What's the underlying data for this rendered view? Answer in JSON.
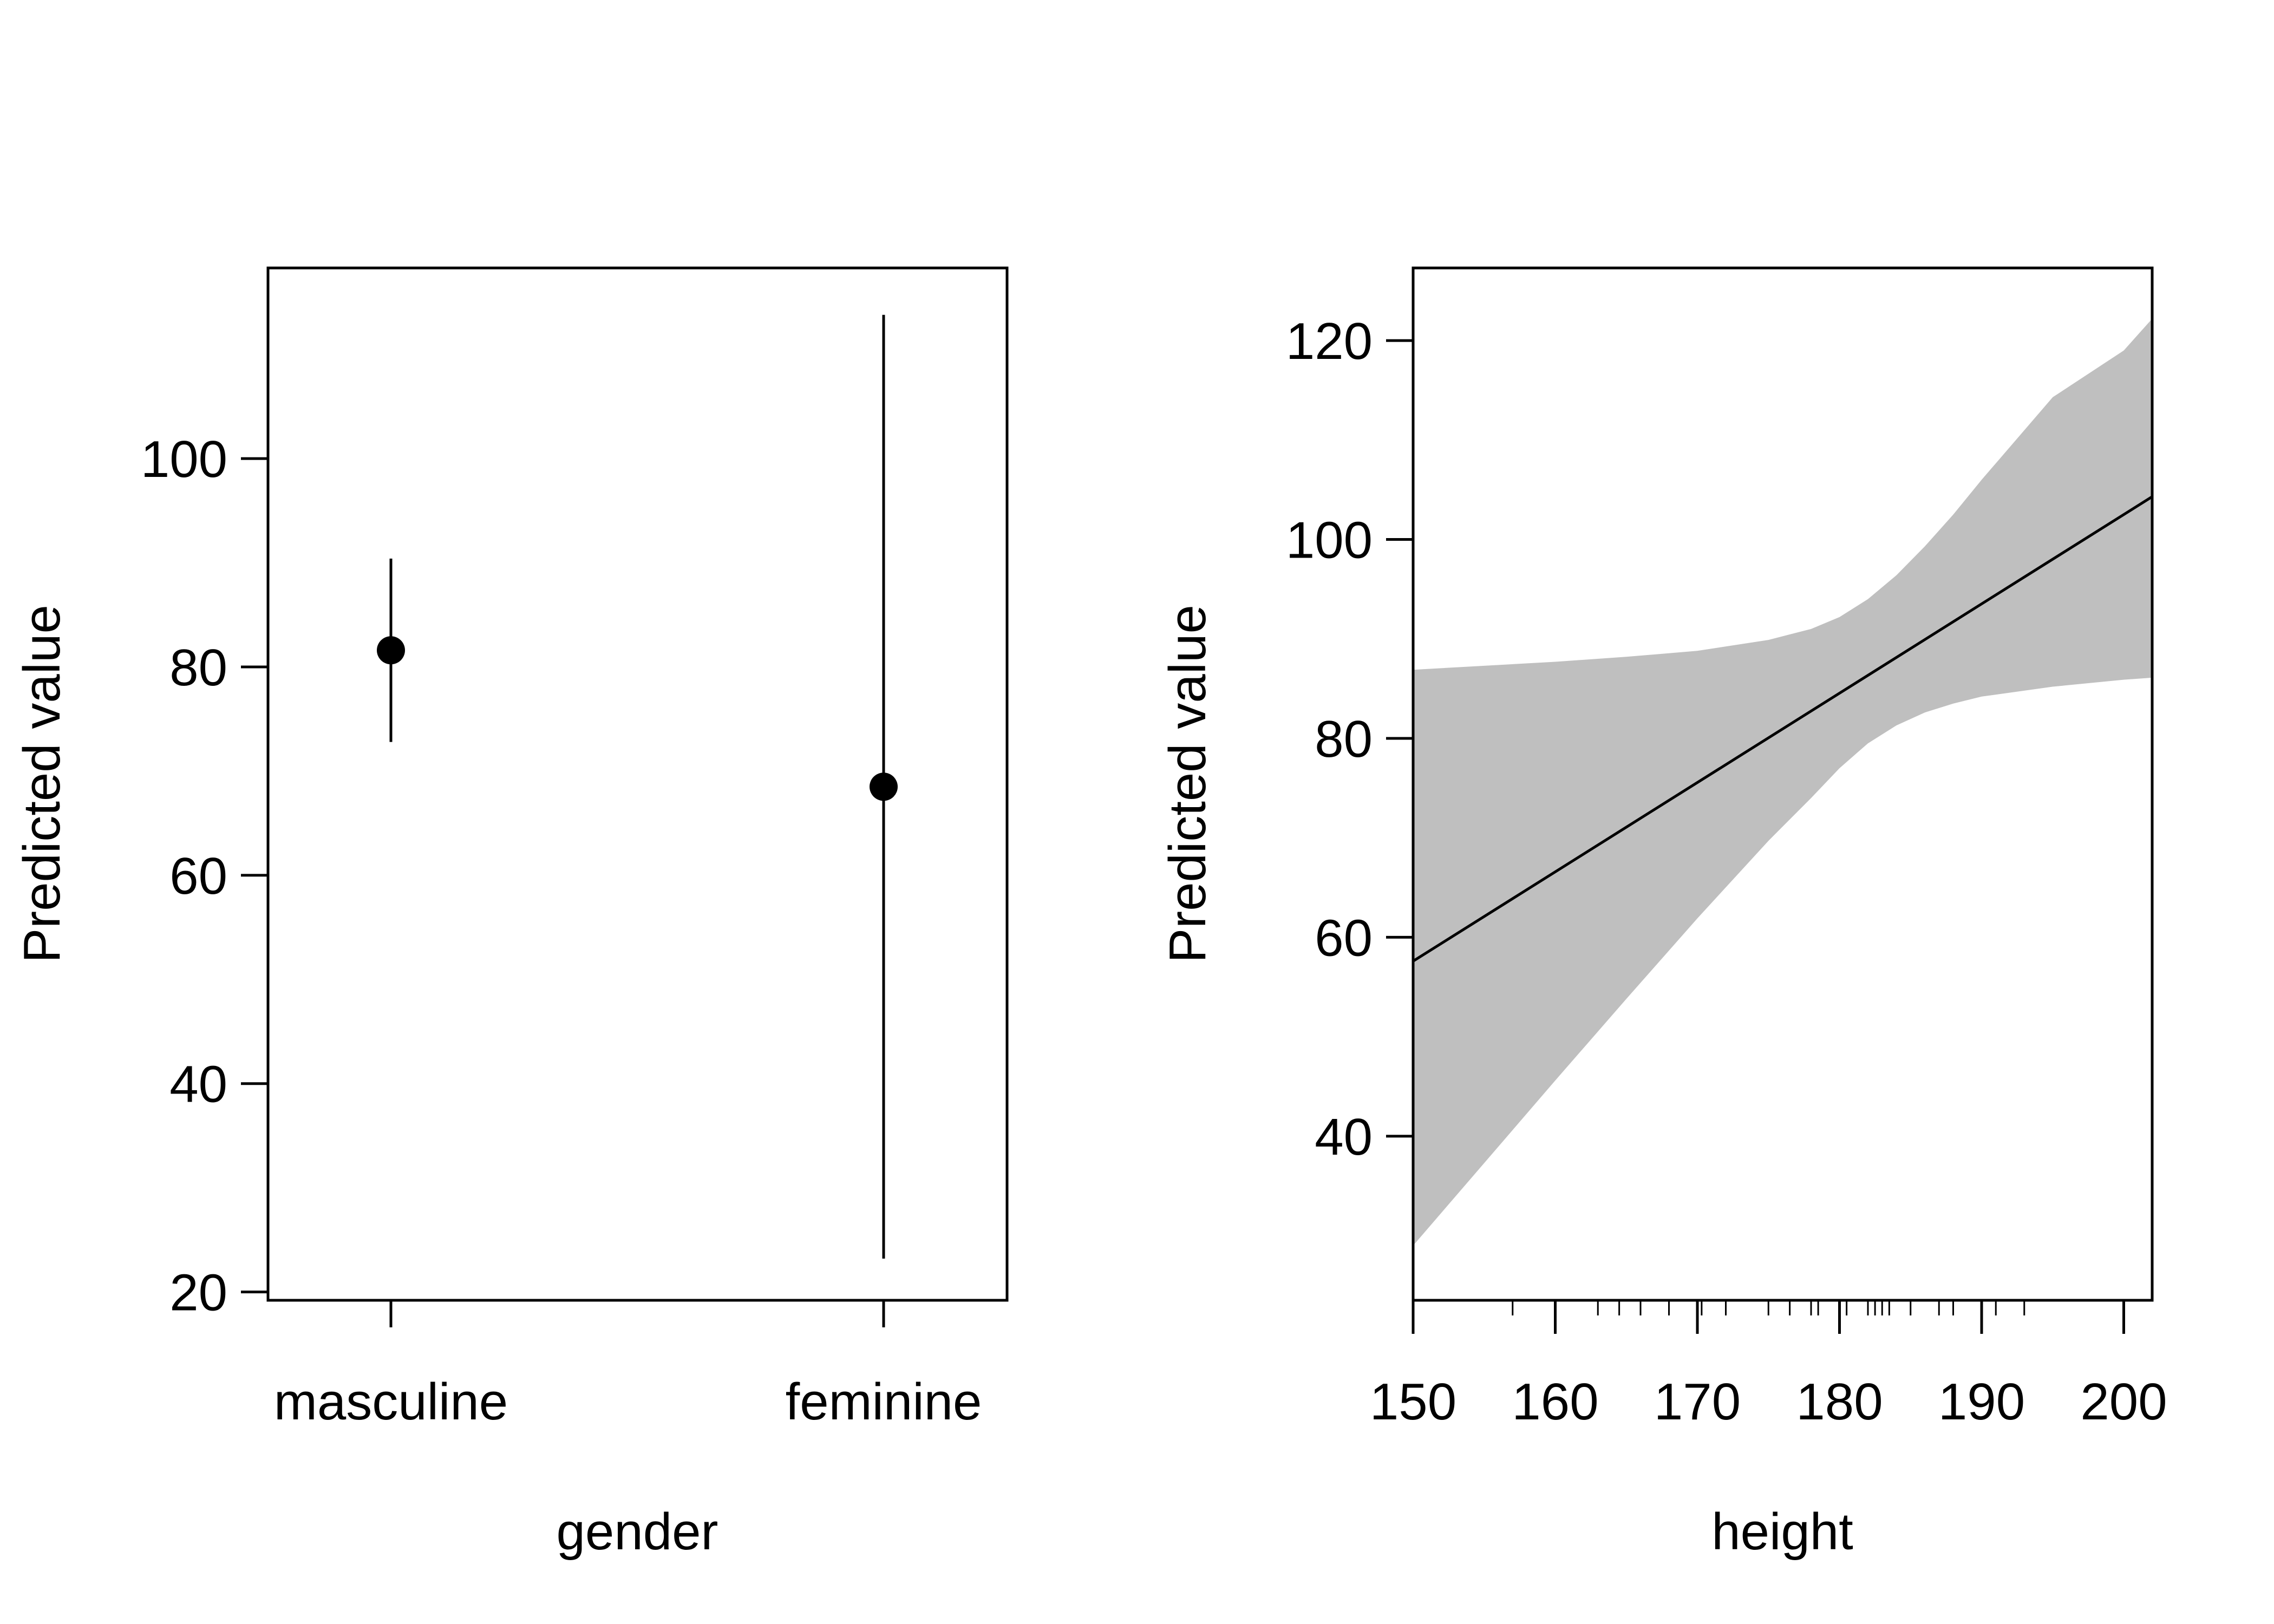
{
  "chart_data": [
    {
      "type": "scatter",
      "xlabel": "gender",
      "ylabel": "Predicted value",
      "categories": [
        "masculine",
        "feminine"
      ],
      "series": [
        {
          "points": [
            {
              "x": "masculine",
              "y": 81.6,
              "lower": 72.8,
              "upper": 90.4
            },
            {
              "x": "feminine",
              "y": 68.5,
              "lower": 23.2,
              "upper": 113.8
            }
          ]
        }
      ],
      "ylim": [
        19.2,
        118.3
      ],
      "yticks": [
        20,
        40,
        60,
        80,
        100
      ],
      "grid": false
    },
    {
      "type": "line",
      "xlabel": "height",
      "ylabel": "Predicted value",
      "xlim": [
        150,
        202
      ],
      "ylim": [
        23.5,
        127.3
      ],
      "xticks": [
        150,
        160,
        170,
        180,
        190,
        200
      ],
      "yticks": [
        40,
        60,
        80,
        100,
        120
      ],
      "series": [
        {
          "x": [
            150,
            202
          ],
          "y": [
            57.6,
            104.3
          ]
        }
      ],
      "band": {
        "x": [
          150,
          155,
          160,
          165,
          170,
          175,
          178,
          180,
          182,
          184,
          186,
          188,
          190,
          195,
          200,
          202
        ],
        "lower": [
          29.0,
          37.3,
          45.6,
          53.8,
          61.9,
          69.7,
          74.0,
          77.0,
          79.5,
          81.3,
          82.6,
          83.5,
          84.2,
          85.2,
          85.9,
          86.1
        ],
        "upper": [
          86.9,
          87.3,
          87.7,
          88.2,
          88.8,
          89.9,
          91.0,
          92.2,
          94.0,
          96.4,
          99.3,
          102.5,
          106.0,
          114.3,
          119.0,
          122.2
        ]
      },
      "rug": [
        157,
        160,
        163,
        164.5,
        166,
        168,
        170,
        170.3,
        172,
        175,
        176.5,
        178,
        178.5,
        180,
        180.5,
        182,
        182.5,
        183,
        183.5,
        185,
        187,
        188,
        190,
        191,
        193
      ],
      "grid": false
    }
  ]
}
